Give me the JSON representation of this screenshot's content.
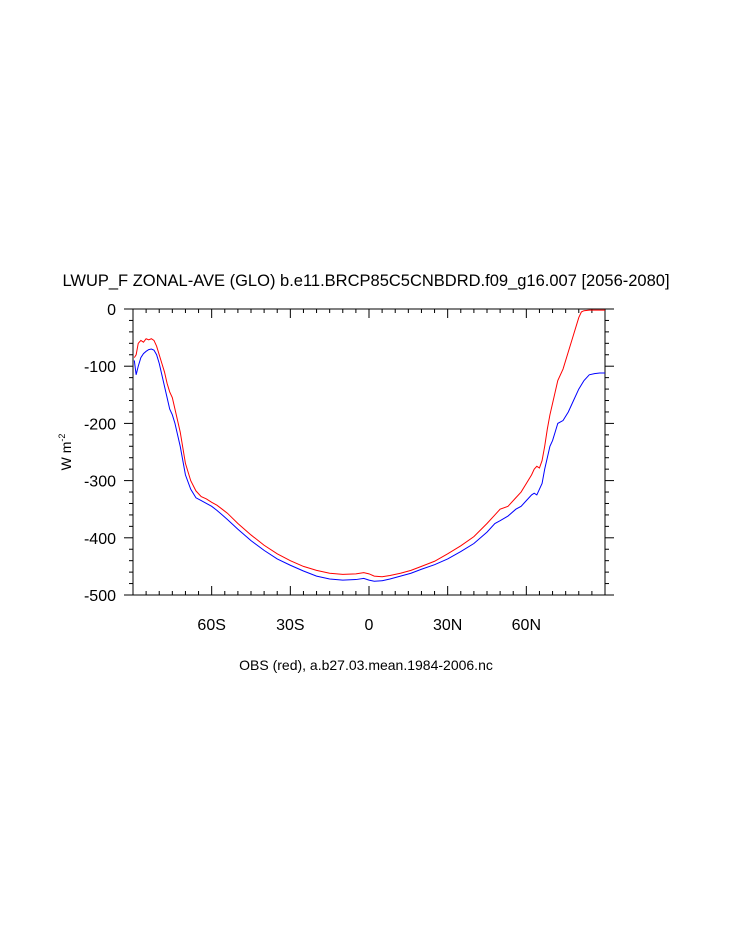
{
  "chart_data": {
    "type": "line",
    "title": "LWUP_F ZONAL-AVE (GLO) b.e11.BRCP85C5CNBDRD.f09_g16.007 [2056-2080]",
    "xlabel": "OBS (red), a.b27.03.mean.1984-2006.nc",
    "ylabel": "W m",
    "ylabel_superscript": "-2",
    "xlim": [
      -90,
      90
    ],
    "ylim": [
      -500,
      0
    ],
    "x_ticks": [
      {
        "value": -60,
        "label": "60S"
      },
      {
        "value": -30,
        "label": "30S"
      },
      {
        "value": 0,
        "label": "0"
      },
      {
        "value": 30,
        "label": "30N"
      },
      {
        "value": 60,
        "label": "60N"
      }
    ],
    "y_ticks": [
      {
        "value": 0,
        "label": "0"
      },
      {
        "value": -100,
        "label": "-100"
      },
      {
        "value": -200,
        "label": "-200"
      },
      {
        "value": -300,
        "label": "-300"
      },
      {
        "value": -400,
        "label": "-400"
      },
      {
        "value": -500,
        "label": "-500"
      }
    ],
    "grid": false,
    "series": [
      {
        "color": "#0000ff",
        "x": [
          -89.5,
          -88.8,
          -88,
          -87,
          -86,
          -85,
          -84,
          -83,
          -82,
          -81,
          -80,
          -79,
          -78,
          -77,
          -76,
          -75,
          -74,
          -72,
          -70,
          -68,
          -66,
          -64,
          -62,
          -60,
          -58,
          -56,
          -54,
          -50,
          -45,
          -40,
          -35,
          -30,
          -25,
          -20,
          -15,
          -10,
          -5,
          -2,
          0,
          2,
          5,
          8,
          12,
          16,
          20,
          25,
          30,
          35,
          40,
          45,
          48,
          50,
          53,
          56,
          58,
          60,
          62,
          63,
          64,
          65,
          66,
          67,
          68,
          69,
          70,
          71,
          72,
          74,
          76,
          78,
          80,
          82,
          84,
          86,
          88,
          90
        ],
        "y": [
          -90,
          -115,
          -100,
          -85,
          -78,
          -74,
          -71,
          -70,
          -72,
          -80,
          -95,
          -115,
          -135,
          -155,
          -175,
          -185,
          -200,
          -240,
          -290,
          -315,
          -330,
          -335,
          -340,
          -345,
          -352,
          -360,
          -368,
          -385,
          -405,
          -422,
          -437,
          -448,
          -458,
          -467,
          -472,
          -474,
          -473,
          -471,
          -474,
          -476,
          -475,
          -472,
          -467,
          -462,
          -455,
          -447,
          -437,
          -424,
          -410,
          -390,
          -375,
          -370,
          -362,
          -350,
          -345,
          -335,
          -325,
          -322,
          -325,
          -315,
          -305,
          -280,
          -260,
          -240,
          -230,
          -215,
          -200,
          -195,
          -180,
          -160,
          -140,
          -125,
          -115,
          -113,
          -112,
          -112
        ]
      },
      {
        "color": "#ff0000",
        "x": [
          -89.5,
          -88.8,
          -88,
          -87,
          -86,
          -85,
          -84,
          -83,
          -82,
          -81,
          -80,
          -79,
          -78,
          -77,
          -76,
          -75,
          -74,
          -72,
          -70,
          -68,
          -66,
          -64,
          -62,
          -60,
          -58,
          -56,
          -54,
          -50,
          -45,
          -40,
          -35,
          -30,
          -25,
          -20,
          -15,
          -10,
          -5,
          -2,
          0,
          2,
          5,
          8,
          12,
          16,
          20,
          25,
          30,
          35,
          40,
          45,
          48,
          50,
          53,
          56,
          58,
          60,
          62,
          63,
          64,
          65,
          66,
          67,
          68,
          69,
          70,
          71,
          72,
          74,
          76,
          78,
          80,
          81,
          82,
          84,
          86,
          88,
          90
        ],
        "y": [
          -85,
          -80,
          -60,
          -55,
          -58,
          -52,
          -54,
          -52,
          -55,
          -65,
          -80,
          -95,
          -110,
          -130,
          -145,
          -155,
          -175,
          -215,
          -270,
          -300,
          -318,
          -328,
          -332,
          -338,
          -343,
          -350,
          -357,
          -375,
          -395,
          -413,
          -428,
          -440,
          -450,
          -457,
          -462,
          -464,
          -463,
          -461,
          -463,
          -467,
          -468,
          -466,
          -462,
          -457,
          -450,
          -441,
          -428,
          -414,
          -398,
          -375,
          -360,
          -350,
          -345,
          -330,
          -320,
          -305,
          -290,
          -280,
          -275,
          -278,
          -265,
          -240,
          -210,
          -185,
          -165,
          -145,
          -125,
          -105,
          -75,
          -45,
          -15,
          -5,
          -3,
          -2,
          -2,
          -2,
          -2
        ]
      }
    ]
  }
}
